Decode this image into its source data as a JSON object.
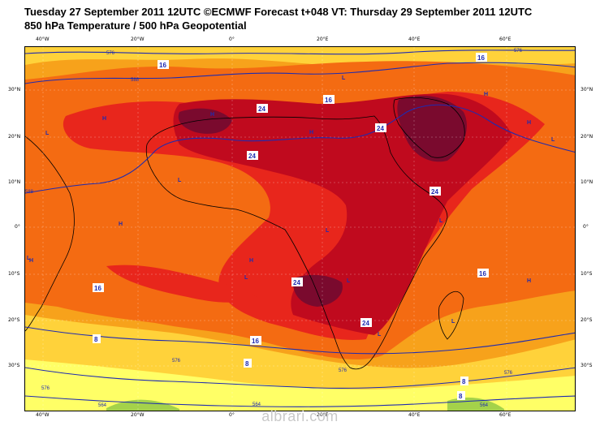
{
  "header": {
    "line1": "Tuesday 27 September 2011 12UTC ©ECMWF Forecast t+048 VT: Thursday 29 September 2011 12UTC",
    "line2": "850 hPa Temperature / 500 hPa Geopotential"
  },
  "axes": {
    "top_lon": [
      "40°W",
      "20°W",
      "0°",
      "20°E",
      "40°E",
      "60°E"
    ],
    "bottom_lon": [
      "40°W",
      "20°W",
      "0°",
      "20°E",
      "40°E",
      "60°E"
    ],
    "left_lat": [
      "30°N",
      "20°N",
      "10°N",
      "0°",
      "10°S",
      "20°S",
      "30°S"
    ],
    "right_lat": [
      "30°N",
      "20°N",
      "10°N",
      "0°",
      "10°S",
      "20°S",
      "30°S"
    ]
  },
  "temperature_labels": [
    "16",
    "16",
    "24",
    "24",
    "24",
    "24",
    "24",
    "24",
    "16",
    "16",
    "16",
    "16",
    "8",
    "8",
    "8",
    "8"
  ],
  "geopotential_labels": [
    "576",
    "588",
    "588",
    "576",
    "576",
    "576",
    "576",
    "576",
    "564",
    "564",
    "564"
  ],
  "pressure_centres": [
    "H",
    "H",
    "H",
    "H",
    "H",
    "H",
    "H",
    "H",
    "H",
    "L",
    "L",
    "L",
    "L",
    "L",
    "L",
    "L",
    "L",
    "L",
    "L",
    "L"
  ],
  "colors": {
    "t_0_8": "#ffff66",
    "t_8_12": "#ffd23a",
    "t_12_16": "#f7a21b",
    "t_16_20": "#f46b12",
    "t_20_24": "#e8261c",
    "t_24_28": "#c00a1e",
    "t_28_32": "#7a0a2e",
    "t_cold": "#f0f040",
    "green_patch": "#a4d24a",
    "contour": "#1f2bb0",
    "coast": "#000000"
  },
  "watermark": "albrari.com"
}
